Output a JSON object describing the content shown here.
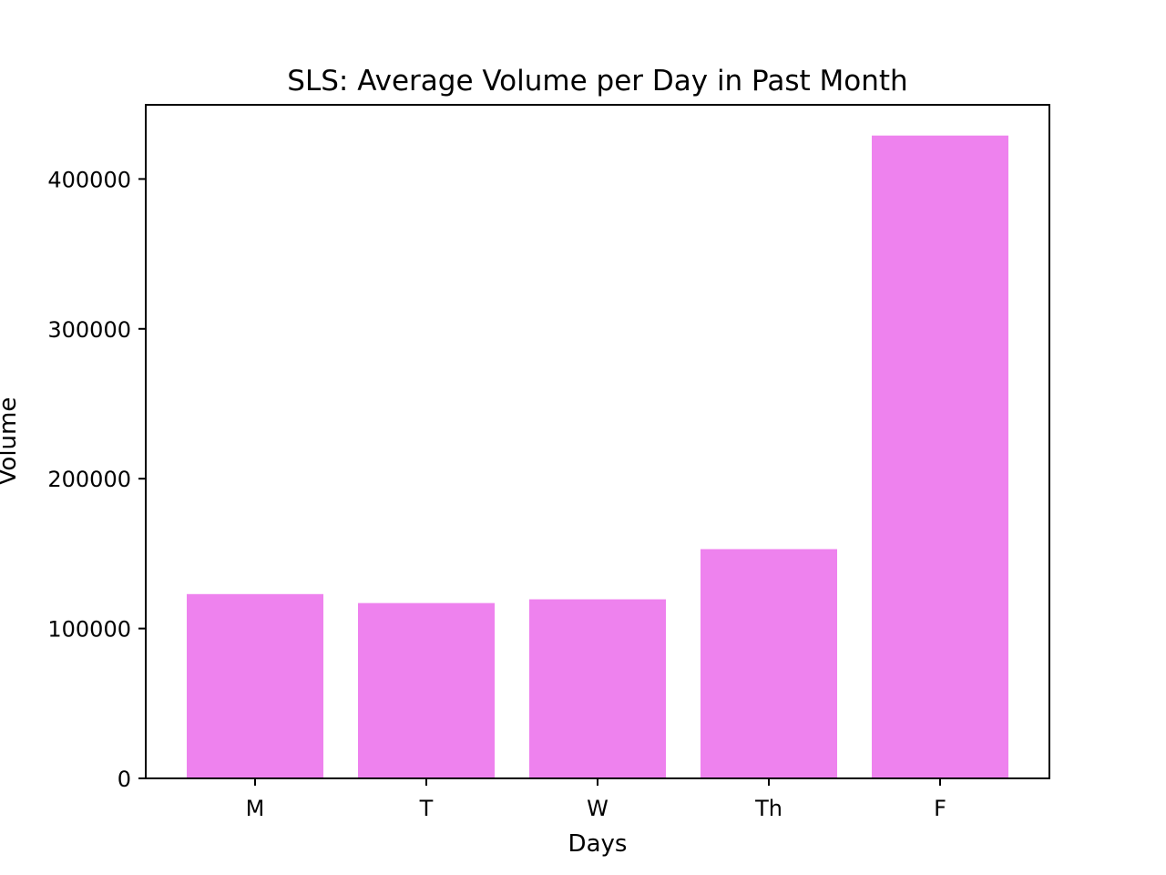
{
  "chart_data": {
    "type": "bar",
    "title": "SLS: Average Volume per Day in Past Month",
    "xlabel": "Days",
    "ylabel": "Volume",
    "categories": [
      "M",
      "T",
      "W",
      "Th",
      "F"
    ],
    "values": [
      123000,
      117000,
      119500,
      153000,
      429000
    ],
    "yticks": [
      0,
      100000,
      200000,
      300000,
      400000
    ],
    "ytick_labels": [
      "0",
      "100000",
      "200000",
      "300000",
      "400000"
    ],
    "ylim": [
      0,
      450000
    ],
    "grid": false,
    "legend": "none",
    "bar_color": "#ee82ee"
  }
}
